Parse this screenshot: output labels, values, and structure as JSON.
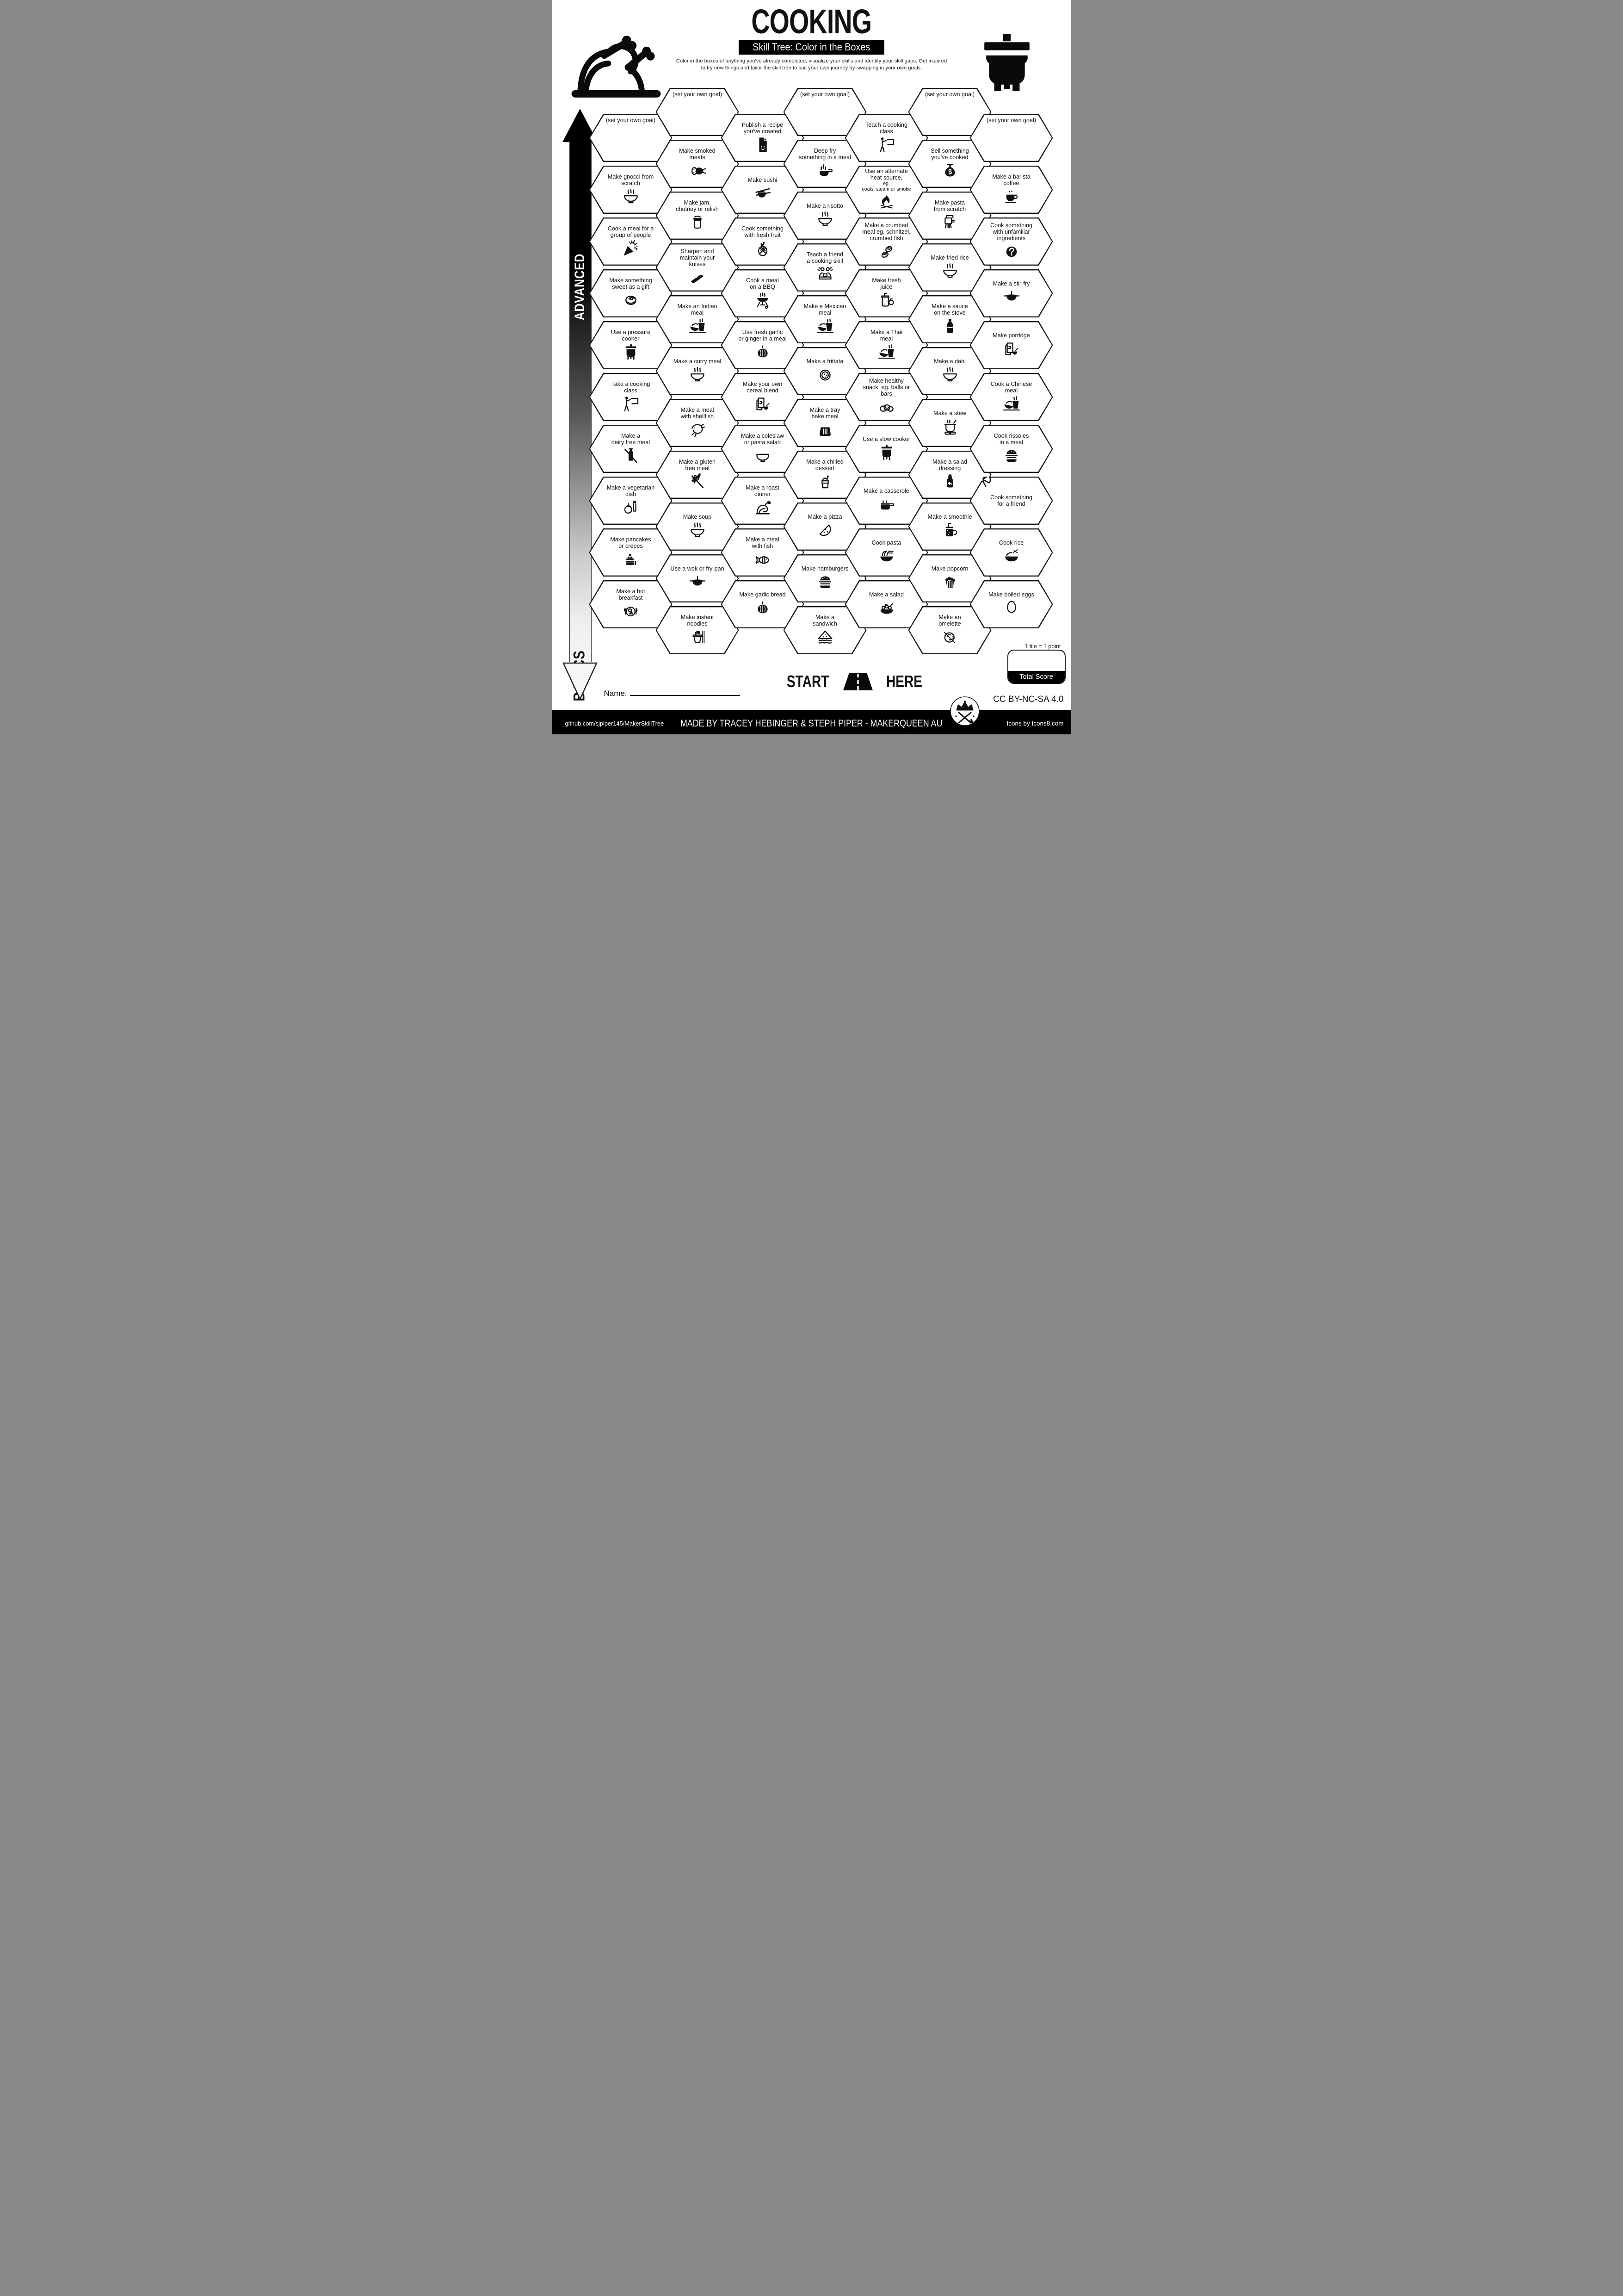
{
  "header": {
    "title": "COOKING",
    "subtitle": "Skill Tree: Color in the Boxes",
    "description": "Color in the boxes of anything you've already completed, visualize your skills and identify your skill gaps.  Get inspired\nto try new things and tailor the skill tree to suit your own journey by swapping in your own goals.",
    "decorations": {
      "left": "roast-turkey-icon",
      "right": "cooking-pot-icon"
    }
  },
  "axis": {
    "advanced": "ADVANCED",
    "basics": "BASICS"
  },
  "grid": {
    "columns": [
      {
        "tiles": [
          {
            "label": "(set your own goal)",
            "goal": true
          },
          {
            "label": "Make gnocci from\nscratch",
            "icon": "steaming-bowl"
          },
          {
            "label": "Cook a meal for a\ngroup of people",
            "icon": "party-popper"
          },
          {
            "label": "Make something\nsweet as a gift",
            "icon": "sweet-roll"
          },
          {
            "label": "Use a pressure\ncooker",
            "icon": "pressure-cooker"
          },
          {
            "label": "Take a cooking\nclass",
            "icon": "teacher-blackboard"
          },
          {
            "label": "Make a\ndairy free meal",
            "icon": "no-dairy"
          },
          {
            "label": "Make a vegetarian\ndish",
            "icon": "vegetarian"
          },
          {
            "label": "Make pancakes\nor crepes",
            "icon": "pancakes"
          },
          {
            "label": "Make a hot\nbreakfast",
            "icon": "breakfast-plate"
          }
        ]
      },
      {
        "tiles": [
          {
            "label": "(set your own goal)",
            "goal": true
          },
          {
            "label": "Make smoked\nmeats",
            "icon": "salami"
          },
          {
            "label": "Make jam,\nchutney or relish",
            "icon": "jam-jar"
          },
          {
            "label": "Sharpen and\nmaintain your\nknives",
            "icon": "chef-knife"
          },
          {
            "label": "Make an Indian\nmeal",
            "icon": "meal-bowl-cup"
          },
          {
            "label": "Make a curry meal",
            "icon": "steaming-bowl"
          },
          {
            "label": "Make a meal\nwith shellfish",
            "icon": "shrimp"
          },
          {
            "label": "Make a gluten\nfree meal",
            "icon": "no-gluten"
          },
          {
            "label": "Make soup",
            "icon": "steaming-bowl"
          },
          {
            "label": "Use a wok or fry-pan",
            "icon": "wok"
          },
          {
            "label": "Make instant\nnoodles",
            "icon": "noodle-box"
          }
        ]
      },
      {
        "tiles": [
          {
            "label": "Publish a recipe\nyou've created",
            "icon": "recipe-document"
          },
          {
            "label": "Make sushi",
            "icon": "sushi"
          },
          {
            "label": "Cook something\nwith fresh fruit",
            "icon": "pineapple"
          },
          {
            "label": "Cook a meal\non a BBQ",
            "icon": "bbq-grill"
          },
          {
            "label": "Use fresh garlic\nor ginger in a meal",
            "icon": "garlic"
          },
          {
            "label": "Make your own\ncereal blend",
            "icon": "cereal-box"
          },
          {
            "label": "Make a coleslaw\nor pasta salad",
            "icon": "plain-bowl"
          },
          {
            "label": "Make a roast\ndinner",
            "icon": "roast-turkey"
          },
          {
            "label": "Make a meal\nwith fish",
            "icon": "fish"
          },
          {
            "label": "Make garlic bread",
            "icon": "garlic"
          }
        ]
      },
      {
        "tiles": [
          {
            "label": "(set your own goal)",
            "goal": true
          },
          {
            "label": "Deep fry\nsomething in a meal",
            "icon": "fryer-basket"
          },
          {
            "label": "Make a risotto",
            "icon": "steaming-bowl"
          },
          {
            "label": "Teach a friend\na cooking skill",
            "icon": "teach-friend"
          },
          {
            "label": "Make a Mexican\nmeal",
            "icon": "meal-bowl-cup"
          },
          {
            "label": "Make a frittata",
            "icon": "frittata"
          },
          {
            "label": "Make a tray\nbake meal",
            "icon": "tray-bake"
          },
          {
            "label": "Make a chilled\ndessert",
            "icon": "chilled-dessert"
          },
          {
            "label": "Make a pizza",
            "icon": "pizza-slice"
          },
          {
            "label": "Make hamburgers",
            "icon": "hamburger"
          },
          {
            "label": "Make a\nsandwich",
            "icon": "sandwich"
          }
        ]
      },
      {
        "tiles": [
          {
            "label": "Teach a cooking\nclass",
            "icon": "teacher-blackboard"
          },
          {
            "label": "Use an alternate\nheat source,",
            "sub": "eg.\ncoals, steam or smoke",
            "icon": "campfire"
          },
          {
            "label": "Make a crumbed\nmeal eg. schnitzel,\ncrumbed fish",
            "icon": "schnitzel"
          },
          {
            "label": "Make fresh\njuice",
            "icon": "juice-jar"
          },
          {
            "label": "Make a Thai\nmeal",
            "icon": "meal-bowl-cup"
          },
          {
            "label": "Make healthy\nsnack, eg. balls or\nbars",
            "icon": "snack-balls"
          },
          {
            "label": "Use a slow cooker",
            "icon": "slow-cooker"
          },
          {
            "label": "Make a casserole",
            "icon": "casserole"
          },
          {
            "label": "Cook pasta",
            "icon": "pasta-bowl"
          },
          {
            "label": "Make a salad",
            "icon": "salad-bowl"
          }
        ]
      },
      {
        "tiles": [
          {
            "label": "(set your own goal)",
            "goal": true
          },
          {
            "label": "Sell something\nyou've cooked",
            "icon": "money-bag"
          },
          {
            "label": "Make pasta\nfrom scratch",
            "icon": "pasta-press"
          },
          {
            "label": "Make fried rice",
            "icon": "steaming-bowl"
          },
          {
            "label": "Make a sauce\non the stove",
            "icon": "sauce-bottle"
          },
          {
            "label": "Make a dahl",
            "icon": "steaming-bowl"
          },
          {
            "label": "Make a stew",
            "icon": "stew-pot"
          },
          {
            "label": "Make a salad\ndressing",
            "icon": "dressing-bottle"
          },
          {
            "label": "Make a smoothie",
            "icon": "smoothie"
          },
          {
            "label": "Make popcorn",
            "icon": "popcorn"
          },
          {
            "label": "Make an\nomelette",
            "icon": "omelette-pan"
          }
        ]
      },
      {
        "tiles": [
          {
            "label": "(set your own goal)",
            "goal": true
          },
          {
            "label": "Make a barista\ncoffee",
            "icon": "coffee-cup"
          },
          {
            "label": "Cook something\nwith unfamiliar\ningredients",
            "icon": "question-mark"
          },
          {
            "label": "Make a stir-fry",
            "icon": "wok"
          },
          {
            "label": "Make porridge",
            "icon": "cereal-box"
          },
          {
            "label": "Cook a Chinese\nmeal",
            "icon": "meal-bowl-cup"
          },
          {
            "label": "Cook rissoles\nin a meal",
            "icon": "hamburger"
          },
          {
            "label": "Cook something\nfor a friend",
            "decoration": "gift-bow"
          },
          {
            "label": "Cook rice",
            "icon": "rice-bowl"
          },
          {
            "label": "Make boiled eggs",
            "icon": "egg"
          }
        ]
      }
    ]
  },
  "start_marker": {
    "left_word": "START",
    "right_word": "HERE",
    "icon": "road-icon"
  },
  "name_field": {
    "label": "Name:"
  },
  "score": {
    "note": "1 tile = 1 point",
    "total_label": "Total Score"
  },
  "footer": {
    "github": "github.com/sjpiper145/MakerSkillTree",
    "credit": "MADE BY TRACEY HEBINGER & STEPH PIPER  -  MAKERQUEEN AU",
    "license": "CC BY-NC-SA 4.0",
    "icons_credit": "Icons by Icons8.com",
    "logo": "makerqueen-logo"
  }
}
